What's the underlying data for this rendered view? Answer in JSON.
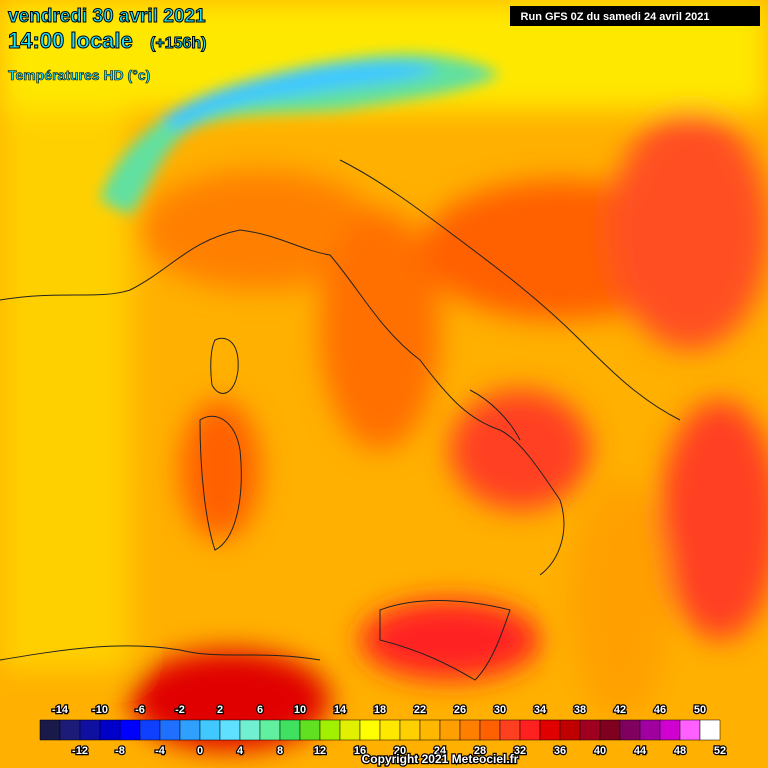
{
  "header": {
    "date": "vendredi 30 avril 2021",
    "time": "14:00 locale",
    "lead": "(+156h)",
    "field": "Températures HD (°c)",
    "run": "Run GFS 0Z du samedi 24 avril 2021"
  },
  "legend": {
    "range": [
      -16,
      52
    ],
    "colors": [
      "#1a1a4a",
      "#1c1c78",
      "#1010a0",
      "#0000c8",
      "#0000ff",
      "#1040ff",
      "#2070ff",
      "#30a0ff",
      "#40c8ff",
      "#60e0ff",
      "#70f0d0",
      "#60f0a0",
      "#40e060",
      "#60e020",
      "#a0f000",
      "#e0f000",
      "#ffff00",
      "#ffe800",
      "#ffd000",
      "#ffb800",
      "#ffa000",
      "#ff8000",
      "#ff6000",
      "#ff4020",
      "#ff2020",
      "#e00000",
      "#c00000",
      "#a00020",
      "#800020",
      "#800060",
      "#a000a0",
      "#d000d0",
      "#ff60ff",
      "#ffffff"
    ],
    "top_labels": [
      -14,
      -10,
      -6,
      -2,
      2,
      6,
      10,
      14,
      18,
      22,
      26,
      30,
      34,
      38,
      42,
      46,
      50
    ],
    "bottom_labels": [
      -12,
      -8,
      -4,
      0,
      4,
      8,
      12,
      16,
      20,
      24,
      28,
      32,
      36,
      40,
      44,
      48,
      52
    ]
  },
  "footer": {
    "copyright": "Copyright 2021 Meteociel.fr"
  }
}
